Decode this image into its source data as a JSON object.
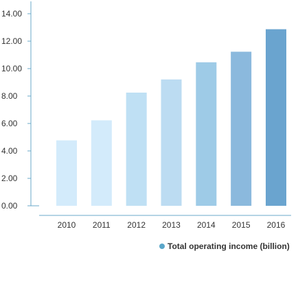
{
  "chart_data": {
    "type": "bar",
    "categories": [
      "2010",
      "2011",
      "2012",
      "2013",
      "2014",
      "2015",
      "2016"
    ],
    "series": [
      {
        "name": "Total operating income (billion)",
        "values": [
          4.77,
          6.23,
          8.25,
          9.21,
          10.46,
          11.23,
          12.87
        ],
        "colors": [
          "#d3ebfb",
          "#d3ebfb",
          "#bfe0f4",
          "#bcdcf2",
          "#9ecbe7",
          "#8bb9dd",
          "#6aa4cf"
        ]
      }
    ],
    "y_ticks": [
      "0.00",
      "2.00",
      "4.00",
      "6.00",
      "8.00",
      "10.00",
      "12.00",
      "14.00"
    ],
    "ylim": [
      0,
      14
    ],
    "grid": false,
    "legend_position": "bottom-right",
    "legend_marker_color": "#5aa6c9",
    "axis_color": "#6aa8c8",
    "label_color": "#333333"
  }
}
